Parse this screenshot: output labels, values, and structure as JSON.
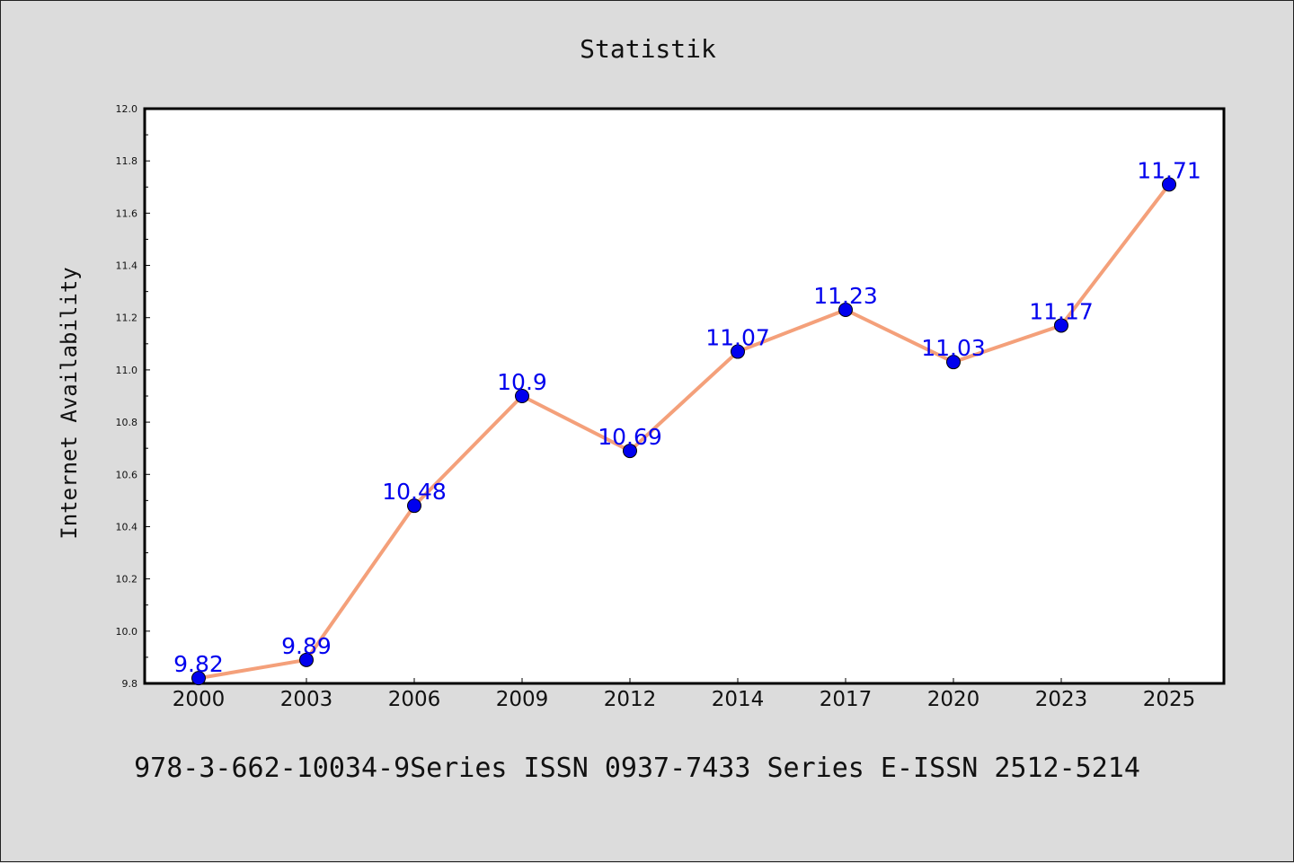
{
  "chart_data": {
    "type": "line",
    "title": "Statistik",
    "xlabel": "",
    "ylabel": "Internet Availability",
    "categories": [
      "2000",
      "2003",
      "2006",
      "2009",
      "2012",
      "2014",
      "2017",
      "2020",
      "2023",
      "2025"
    ],
    "values": [
      9.82,
      9.89,
      10.48,
      10.9,
      10.69,
      11.07,
      11.23,
      11.03,
      11.17,
      11.71
    ],
    "data_labels": [
      "9.82",
      "9.89",
      "10.48",
      "10.9",
      "10.69",
      "11.07",
      "11.23",
      "11.03",
      "11.17",
      "11.71"
    ],
    "ylim": [
      9.8,
      12.0
    ],
    "yticks": [
      "9.8",
      "10.0",
      "10.2",
      "10.4",
      "10.6",
      "10.8",
      "11.0",
      "11.2",
      "11.4",
      "11.6",
      "11.8",
      "12.0"
    ],
    "grid": false,
    "legend": "none"
  },
  "footer": {
    "text": "978-3-662-10034-9Series ISSN 0937-7433 Series E-ISSN 2512-5214"
  },
  "colors": {
    "background": "#dcdcdc",
    "plot_background": "#ffffff",
    "line": "#f4a07a",
    "marker": "#0000ee",
    "data_label": "#0000ee"
  }
}
